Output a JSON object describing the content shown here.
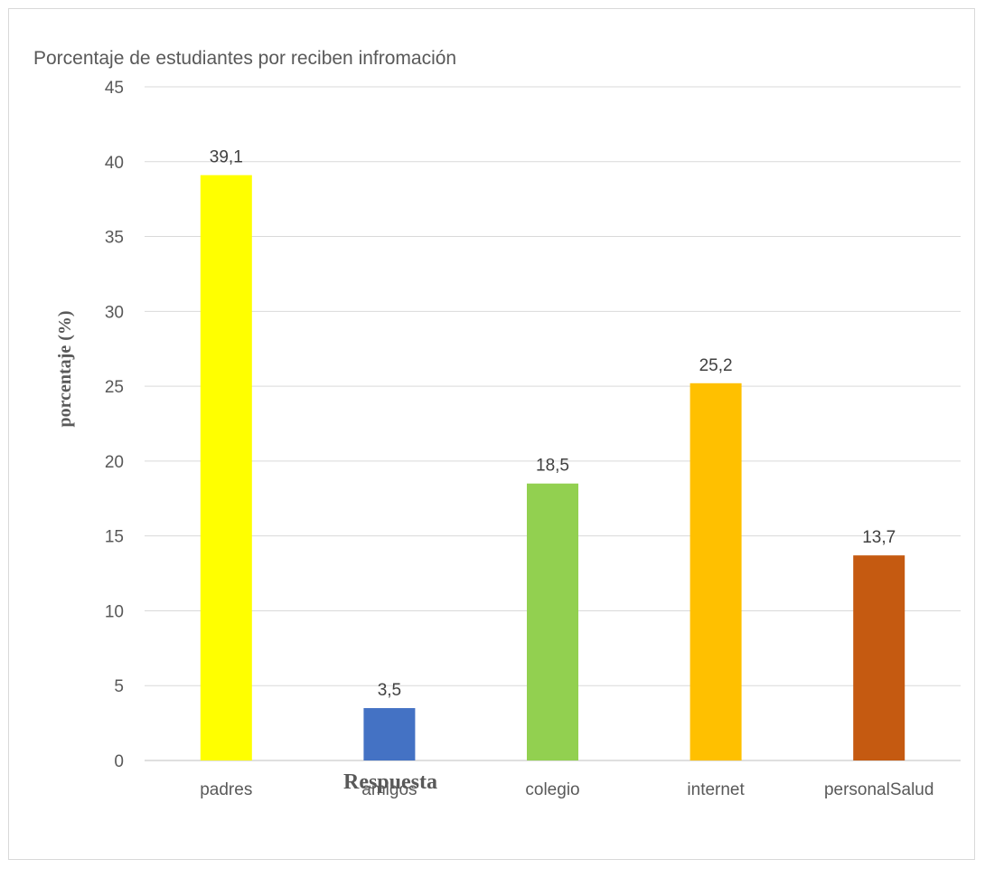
{
  "chart_data": {
    "type": "bar",
    "title": "Porcentaje de estudiantes por reciben infromación",
    "xlabel": "Respuesta",
    "ylabel": "porcentaje (%)",
    "categories": [
      "padres",
      "amigos",
      "colegio",
      "internet",
      "personalSalud"
    ],
    "values": [
      39.1,
      3.5,
      18.5,
      25.2,
      13.7
    ],
    "data_labels": [
      "39,1",
      "3,5",
      "18,5",
      "25,2",
      "13,7"
    ],
    "colors": [
      "#ffff00",
      "#4472c4",
      "#92d050",
      "#ffc000",
      "#c55a11"
    ],
    "ylim": [
      0,
      45
    ],
    "yticks": [
      0,
      5,
      10,
      15,
      20,
      25,
      30,
      35,
      40,
      45
    ],
    "grid": true,
    "legend": "none"
  }
}
